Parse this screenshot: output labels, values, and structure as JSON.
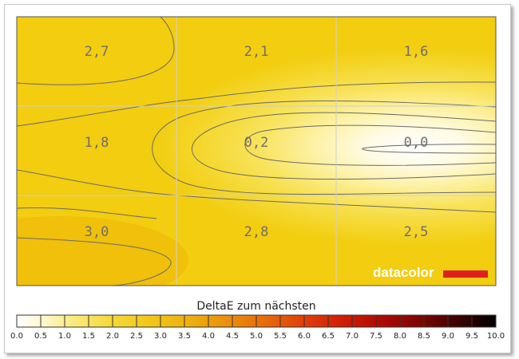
{
  "chart_data": {
    "type": "heatmap",
    "grid": {
      "rows": 3,
      "cols": 3,
      "values": [
        [
          "2,7",
          "2,1",
          "1,6"
        ],
        [
          "1,8",
          "0,2",
          "0,0"
        ],
        [
          "3,0",
          "2,8",
          "2,5"
        ]
      ]
    },
    "colorbar": {
      "title": "DeltaE zum nächsten",
      "ticks": [
        "0.0",
        "0.5",
        "1.0",
        "1.5",
        "2.0",
        "2.5",
        "3.0",
        "3.5",
        "4.0",
        "4.5",
        "5.0",
        "5.5",
        "6.0",
        "6.5",
        "7.0",
        "7.5",
        "8.0",
        "8.5",
        "9.0",
        "9.5",
        "10.0"
      ],
      "range": [
        0,
        10
      ]
    },
    "contours": true,
    "gridlines": true
  },
  "logo": {
    "text": "datacolor",
    "accent_color": "#e02020"
  },
  "colors": {
    "zero": "#ffffff",
    "low": "#f7e35a",
    "mid": "#f0c800",
    "high": "#d40000",
    "max": "#000000"
  }
}
